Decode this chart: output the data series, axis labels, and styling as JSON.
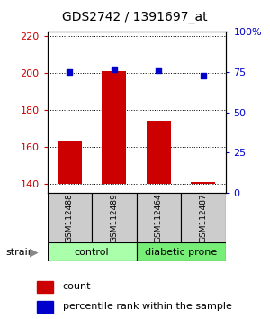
{
  "title": "GDS2742 / 1391697_at",
  "samples": [
    "GSM112488",
    "GSM112489",
    "GSM112464",
    "GSM112487"
  ],
  "bar_values": [
    163,
    201,
    174,
    141
  ],
  "bar_base": 140,
  "bar_color": "#cc0000",
  "dot_values_pct": [
    75,
    77,
    76,
    73
  ],
  "dot_color": "#0000cc",
  "ylim_left": [
    135,
    222
  ],
  "ylim_right": [
    0,
    100
  ],
  "yticks_left": [
    140,
    160,
    180,
    200,
    220
  ],
  "yticks_right": [
    0,
    25,
    50,
    75,
    100
  ],
  "ytick_labels_right": [
    "0",
    "25",
    "50",
    "75",
    "100%"
  ],
  "group_labels": [
    "control",
    "diabetic prone"
  ],
  "group_colors": [
    "#aaffaa",
    "#77ee77"
  ],
  "strain_label": "strain",
  "legend_count_label": "count",
  "legend_pct_label": "percentile rank within the sample",
  "left_tick_color": "#cc0000",
  "right_tick_color": "#0000cc",
  "sample_box_color": "#cccccc",
  "fig_width": 3.0,
  "fig_height": 3.54,
  "dpi": 100
}
